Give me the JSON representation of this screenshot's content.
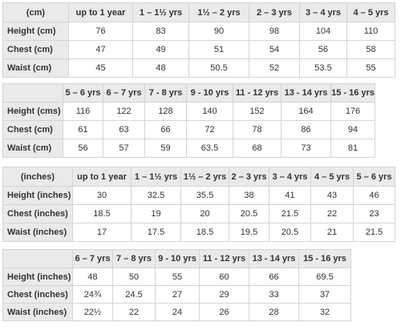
{
  "tables": [
    {
      "header": [
        "(cm)",
        "up to 1 year",
        "1 – 1½ yrs",
        "1½ – 2 yrs",
        "2 – 3 yrs",
        "3 – 4 yrs",
        "4 – 5 yrs"
      ],
      "rows": [
        [
          "Height (cm)",
          "76",
          "83",
          "90",
          "98",
          "104",
          "110"
        ],
        [
          "Chest (cm)",
          "47",
          "49",
          "51",
          "54",
          "56",
          "58"
        ],
        [
          "Waist (cm)",
          "45",
          "48",
          "50.5",
          "52",
          "53.5",
          "55"
        ]
      ]
    },
    {
      "header": [
        "",
        "5 – 6 yrs",
        "6 – 7 yrs",
        "7 - 8 yrs",
        "9 - 10 yrs",
        "11 - 12 yrs",
        "13 - 14 yrs",
        "15 - 16 yrs"
      ],
      "rows": [
        [
          "Height (cms)",
          "116",
          "122",
          "128",
          "140",
          "152",
          "164",
          "176"
        ],
        [
          "Chest (cm)",
          "61",
          "63",
          "66",
          "72",
          "78",
          "86",
          "94"
        ],
        [
          "Waist (cm)",
          "56",
          "57",
          "59",
          "63.5",
          "68",
          "73",
          "81"
        ]
      ]
    },
    {
      "header": [
        "(inches)",
        "up to 1 year",
        "1 – 1½ yrs",
        "1½ – 2 yrs",
        "2 – 3 yrs",
        "3 – 4 yrs",
        "4 – 5 yrs",
        "5 – 6 yrs"
      ],
      "rows": [
        [
          "Height (inches)",
          "30",
          "32.5",
          "35.5",
          "38",
          "41",
          "43",
          "46"
        ],
        [
          "Chest (inches)",
          "18.5",
          "19",
          "20",
          "20.5",
          "21.5",
          "22",
          "23"
        ],
        [
          "Waist (inches)",
          "17",
          "17.5",
          "18.5",
          "19.5",
          "20.5",
          "21",
          "21.5"
        ]
      ]
    },
    {
      "header": [
        "",
        "6 – 7 yrs",
        "7 – 8 yrs",
        "9 - 10 yrs",
        "11 - 12 yrs",
        "13 - 14 yrs",
        "15 - 16 yrs"
      ],
      "rows": [
        [
          "Height (inches)",
          "48",
          "50",
          "55",
          "60",
          "66",
          "69.5"
        ],
        [
          "Chest (inches)",
          "24¾",
          "24.5",
          "27",
          "29",
          "33",
          "37"
        ],
        [
          "Waist (inches)",
          "22½",
          "22",
          "24",
          "26",
          "28",
          "32"
        ]
      ]
    }
  ]
}
